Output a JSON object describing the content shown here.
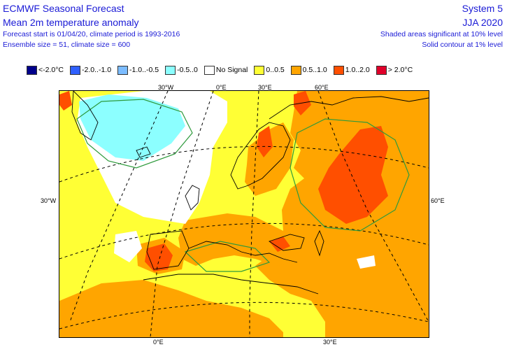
{
  "header": {
    "title": "ECMWF Seasonal Forecast",
    "subtitle": "Mean 2m temperature anomaly",
    "forecast_line": "Forecast start is 01/04/20, climate period is 1993-2016",
    "ensemble_line": "Ensemble size = 51, climate size = 600",
    "system": "System 5",
    "period": "JJA 2020",
    "significance_shaded": "Shaded areas significant at 10% level",
    "significance_contour": "Solid contour at 1% level"
  },
  "legend": [
    {
      "label": "<-2.0°C",
      "color": "#00008b"
    },
    {
      "label": "-2.0..-1.0",
      "color": "#2f60ff"
    },
    {
      "label": "-1.0..-0.5",
      "color": "#7cbcff"
    },
    {
      "label": "-0.5..0",
      "color": "#8cffff"
    },
    {
      "label": "No Signal",
      "color": "#ffffff"
    },
    {
      "label": "0..0.5",
      "color": "#ffff35"
    },
    {
      "label": "0.5..1.0",
      "color": "#ffa500"
    },
    {
      "label": "1.0..2.0",
      "color": "#ff4f00"
    },
    {
      "label": "> 2.0°C",
      "color": "#e0002a"
    }
  ],
  "map_labels": {
    "lon_30w_top": "30°W",
    "lon_0e_top": "0°E",
    "lon_30e_top": "30°E",
    "lon_60e_top": "60°E",
    "lat_30w_left": "30°W",
    "lon_60e_right": "60°E",
    "lon_0e_bottom": "0°E",
    "lon_30e_bottom": "30°E"
  }
}
